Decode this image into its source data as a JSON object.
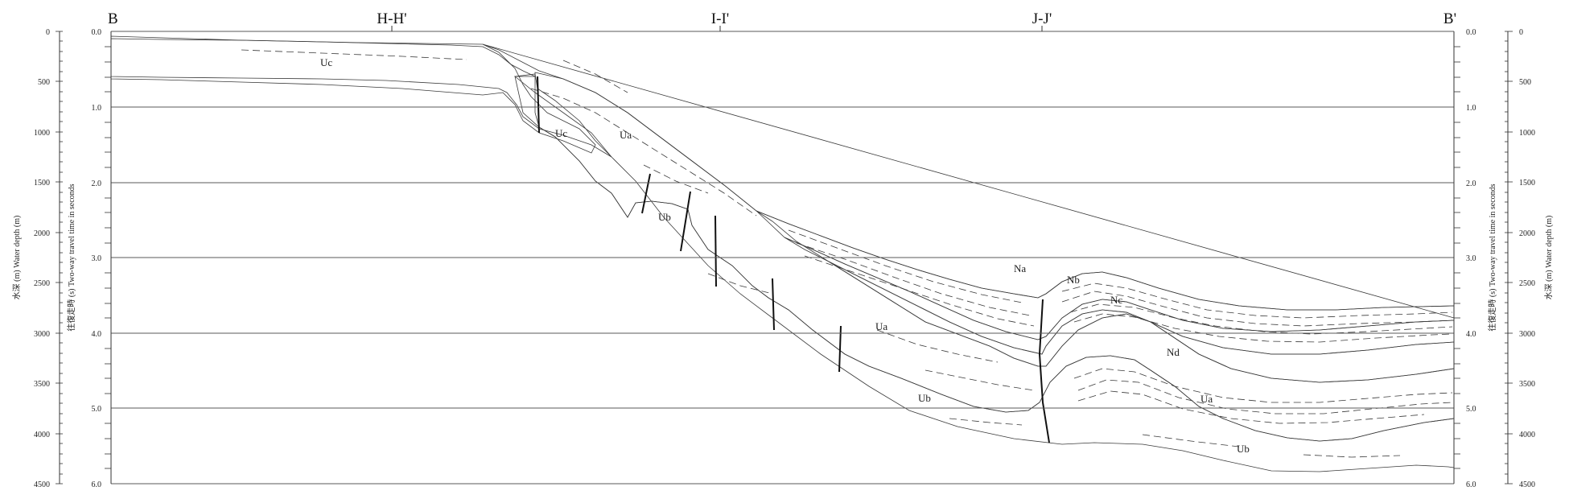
{
  "section": {
    "left_label": "B",
    "right_label": "B'",
    "crossings": [
      "H-H'",
      "I-I'",
      "J-J'"
    ]
  },
  "axes": {
    "depth_ticks": [
      "0",
      "500",
      "1000",
      "1500",
      "2000",
      "2500",
      "3000",
      "3500",
      "4000",
      "4500"
    ],
    "time_ticks": [
      "0.0",
      "1.0",
      "2.0",
      "3.0",
      "4.0",
      "5.0",
      "6.0"
    ],
    "depth_title": "水深 (m)   Water depth (m)",
    "time_title": "往復走時 (s)  Two-way travel time in seconds"
  },
  "units": {
    "Uc": "Uc",
    "Ua": "Ua",
    "Ub": "Ub",
    "Na": "Na",
    "Nb": "Nb",
    "Nc": "Nc",
    "Nd": "Nd"
  },
  "colors": {
    "Uc": "#03585a",
    "Ub": "#66ad8d",
    "Ua": "#cedc98",
    "Nd": "#d48a14",
    "Nc": "#f2dd0f",
    "Nb": "#f1ec86",
    "Na": "#ffffff"
  }
}
